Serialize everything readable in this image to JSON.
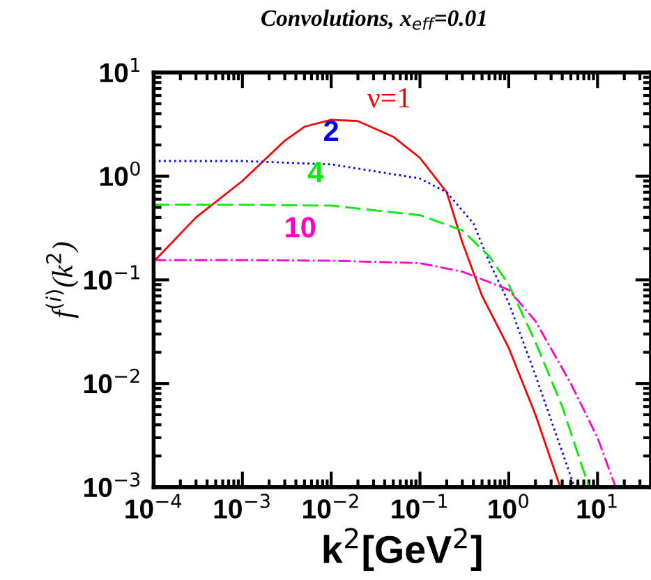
{
  "chart_data": {
    "type": "line",
    "title": "Convolutions, x$_{eff}$=0.01",
    "xlabel": "k$^{2}$[GeV$^{2}$]",
    "ylabel": "f$^{(i)}$(k$^{2}$)",
    "log": "xy",
    "grid": false,
    "legend": false,
    "xlim": [
      0.0001,
      40
    ],
    "ylim": [
      0.001,
      10
    ],
    "xticks": [
      {
        "value": 0.0001,
        "label": "10$^{−4}$"
      },
      {
        "value": 0.001,
        "label": "10$^{−3}$"
      },
      {
        "value": 0.01,
        "label": "10$^{−2}$"
      },
      {
        "value": 0.1,
        "label": "10$^{−1}$"
      },
      {
        "value": 1,
        "label": "10$^{0}$"
      },
      {
        "value": 10,
        "label": "10$^{1}$"
      }
    ],
    "yticks": [
      {
        "value": 0.001,
        "label": "10$^{−3}$"
      },
      {
        "value": 0.01,
        "label": "10$^{−2}$"
      },
      {
        "value": 0.1,
        "label": "10$^{−1}$"
      },
      {
        "value": 1,
        "label": "10$^{0}$"
      },
      {
        "value": 10,
        "label": "10$^{1}$"
      }
    ],
    "series": [
      {
        "name": "ν=1",
        "color": "#ff0000",
        "line_style": "solid",
        "x": [
          0.0001,
          0.0003,
          0.001,
          0.003,
          0.005,
          0.01,
          0.02,
          0.05,
          0.1,
          0.2,
          0.3,
          0.5,
          1,
          2,
          3.8
        ],
        "values": [
          0.15,
          0.4,
          0.9,
          2.2,
          3.0,
          3.5,
          3.4,
          2.4,
          1.5,
          0.7,
          0.23,
          0.07,
          0.022,
          0.005,
          0.001
        ]
      },
      {
        "name": "2",
        "color": "#0000ff",
        "line_style": "dotted",
        "x": [
          0.0001,
          0.001,
          0.01,
          0.1,
          0.2,
          0.4,
          0.6,
          1,
          2,
          5.5
        ],
        "values": [
          1.4,
          1.4,
          1.3,
          0.95,
          0.7,
          0.35,
          0.15,
          0.06,
          0.012,
          0.001
        ]
      },
      {
        "name": "4",
        "color": "#00ee00",
        "line_style": "dashed",
        "x": [
          0.0001,
          0.001,
          0.01,
          0.1,
          0.3,
          0.6,
          1,
          2,
          4,
          8
        ],
        "values": [
          0.53,
          0.53,
          0.52,
          0.42,
          0.3,
          0.17,
          0.09,
          0.025,
          0.006,
          0.001
        ]
      },
      {
        "name": "10",
        "color": "#ff00cc",
        "line_style": "dashdot",
        "x": [
          0.0001,
          0.001,
          0.01,
          0.1,
          0.3,
          1,
          2,
          5,
          10,
          16
        ],
        "values": [
          0.155,
          0.155,
          0.153,
          0.145,
          0.12,
          0.08,
          0.04,
          0.01,
          0.003,
          0.001
        ]
      }
    ]
  }
}
